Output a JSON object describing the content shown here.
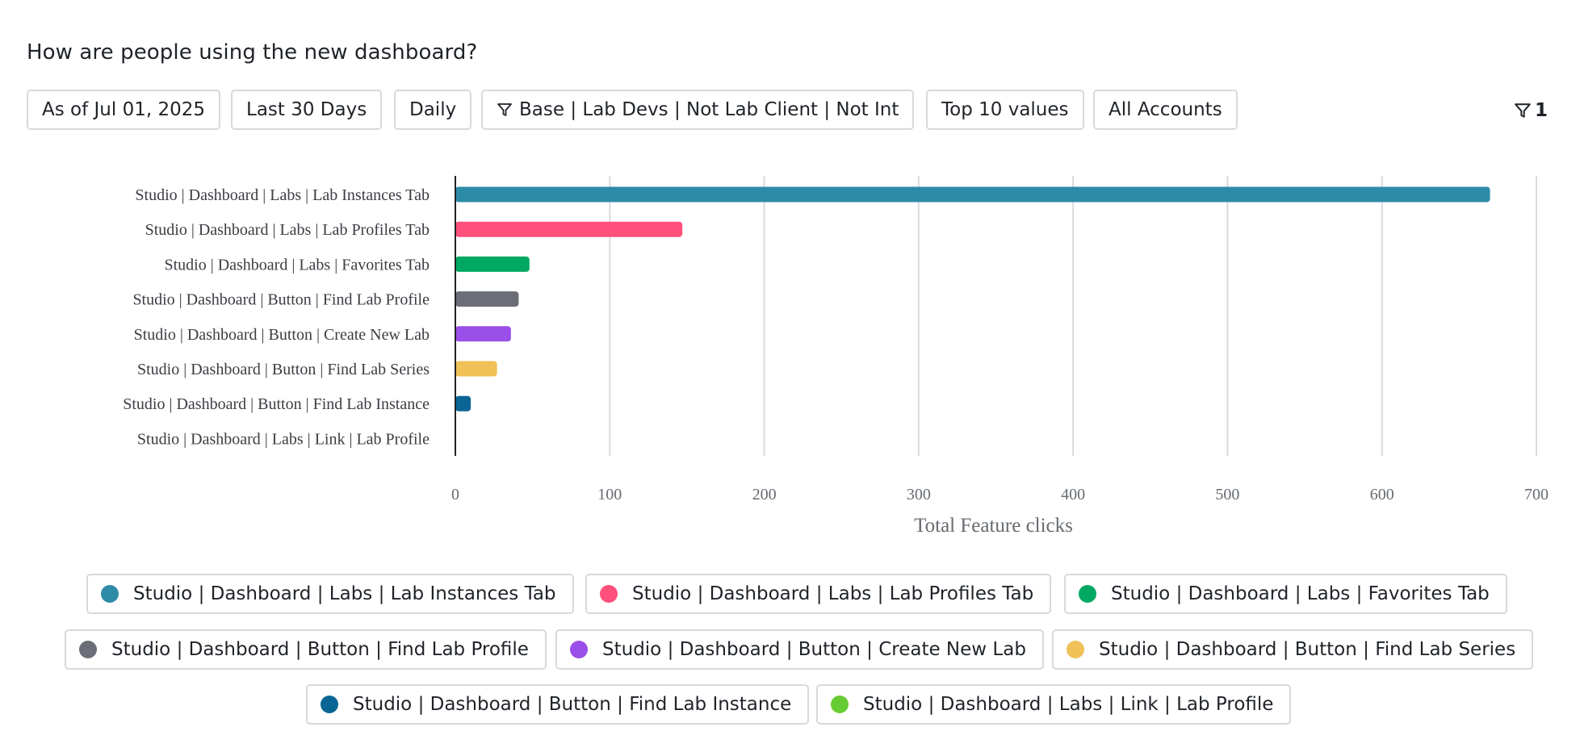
{
  "title": "How are people using the new dashboard?",
  "filters": {
    "as_of": "As of Jul 01, 2025",
    "range": "Last 30 Days",
    "interval": "Daily",
    "segment": "Base | Lab Devs | Not Lab Client | Not Int",
    "limit": "Top 10 values",
    "accounts": "All Accounts",
    "active_filter_count": "1"
  },
  "chart_data": {
    "type": "bar",
    "orientation": "horizontal",
    "categories": [
      "Studio | Dashboard | Labs | Lab Instances Tab",
      "Studio | Dashboard | Labs | Lab Profiles Tab",
      "Studio | Dashboard | Labs | Favorites Tab",
      "Studio | Dashboard | Button | Find Lab Profile",
      "Studio | Dashboard | Button | Create New Lab",
      "Studio | Dashboard | Button | Find Lab Series",
      "Studio | Dashboard | Button | Find Lab Instance",
      "Studio | Dashboard | Labs | Link | Lab Profile"
    ],
    "values": [
      670,
      147,
      48,
      41,
      36,
      27,
      10,
      0
    ],
    "colors": [
      "#2e8ba8",
      "#ff4f7b",
      "#00a862",
      "#6b6e77",
      "#9a4fe8",
      "#efc157",
      "#0a6594",
      "#66cc33"
    ],
    "xlabel": "Total Feature clicks",
    "ylabel": "",
    "xlim": [
      0,
      700
    ],
    "xticks": [
      0,
      100,
      200,
      300,
      400,
      500,
      600,
      700
    ],
    "grid": "vertical"
  }
}
